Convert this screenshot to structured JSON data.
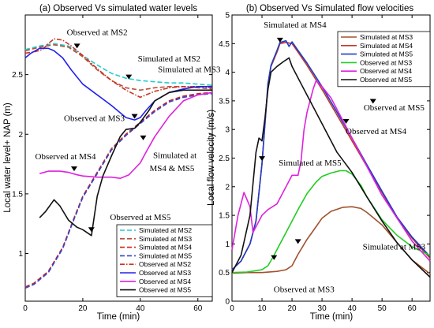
{
  "chart_data": [
    {
      "type": "line",
      "title": "(a) Observed Vs simulated water levels",
      "xlabel": "Time (min)",
      "ylabel": "Local water level+ NAP (m)",
      "xlim": [
        0,
        65
      ],
      "ylim": [
        0.6,
        3.0
      ],
      "xticks": [
        "0",
        "20",
        "40",
        "60"
      ],
      "yticks": [
        "1",
        "1.5",
        "2",
        "2.5"
      ],
      "ytick_values": [
        1,
        1.5,
        2,
        2.5
      ],
      "xtick_values": [
        0,
        20,
        40,
        60
      ],
      "grid": false,
      "legend_position": "bottom-right",
      "series": [
        {
          "name": "Simulated at MS2",
          "color": "#22cccc",
          "dash": "6,3",
          "x": [
            0,
            5,
            10,
            15,
            20,
            25,
            30,
            35,
            40,
            45,
            50,
            55,
            60,
            65
          ],
          "y": [
            2.71,
            2.74,
            2.76,
            2.74,
            2.66,
            2.58,
            2.51,
            2.47,
            2.45,
            2.44,
            2.43,
            2.43,
            2.42,
            2.41
          ]
        },
        {
          "name": "Simulated at MS3",
          "color": "#b8503a",
          "dash": "6,3",
          "x": [
            0,
            5,
            10,
            15,
            20,
            25,
            30,
            35,
            40,
            45,
            50,
            55,
            60,
            65
          ],
          "y": [
            2.7,
            2.73,
            2.75,
            2.73,
            2.65,
            2.54,
            2.45,
            2.39,
            2.37,
            2.39,
            2.4,
            2.4,
            2.39,
            2.38
          ]
        },
        {
          "name": "Simulated at MS4",
          "color": "#cc2222",
          "dash": "6,3",
          "x": [
            0,
            3,
            8,
            13,
            17,
            20,
            25,
            30,
            35,
            40,
            45,
            50,
            55,
            60,
            65
          ],
          "y": [
            0.72,
            0.75,
            0.85,
            1.05,
            1.3,
            1.48,
            1.68,
            1.88,
            2.0,
            2.1,
            2.2,
            2.28,
            2.32,
            2.34,
            2.35
          ]
        },
        {
          "name": "Simulated at MS5",
          "color": "#3344cc",
          "dash": "6,3",
          "x": [
            0,
            3,
            8,
            13,
            17,
            20,
            25,
            30,
            35,
            40,
            45,
            50,
            55,
            60,
            65
          ],
          "y": [
            0.71,
            0.74,
            0.84,
            1.04,
            1.29,
            1.47,
            1.67,
            1.87,
            1.99,
            2.09,
            2.19,
            2.27,
            2.31,
            2.33,
            2.34
          ]
        },
        {
          "name": "Observed at MS2",
          "color": "#cc3322",
          "dash": "6,2,1.5,2",
          "x": [
            0,
            3,
            6,
            8,
            10,
            13,
            16,
            20,
            25,
            30,
            35,
            40,
            45,
            50,
            55,
            60,
            65
          ],
          "y": [
            2.68,
            2.69,
            2.71,
            2.76,
            2.8,
            2.79,
            2.74,
            2.66,
            2.55,
            2.45,
            2.37,
            2.31,
            2.36,
            2.39,
            2.4,
            2.4,
            2.39
          ]
        },
        {
          "name": "Observed at MS3",
          "color": "#2222ee",
          "dash": "",
          "x": [
            0,
            2,
            5,
            8,
            10,
            13,
            16,
            20,
            25,
            30,
            35,
            38,
            40,
            42,
            45,
            50,
            55,
            60,
            65
          ],
          "y": [
            2.64,
            2.68,
            2.72,
            2.72,
            2.7,
            2.64,
            2.54,
            2.42,
            2.33,
            2.24,
            2.14,
            2.12,
            2.14,
            2.2,
            2.28,
            2.35,
            2.38,
            2.4,
            2.4
          ]
        },
        {
          "name": "Observed at MS4",
          "color": "#dd22dd",
          "dash": "",
          "x": [
            5,
            8,
            12,
            15,
            18,
            20,
            25,
            30,
            33,
            36,
            40,
            42,
            45,
            50,
            55,
            60,
            65
          ],
          "y": [
            1.67,
            1.69,
            1.69,
            1.68,
            1.66,
            1.65,
            1.64,
            1.64,
            1.63,
            1.66,
            1.76,
            1.85,
            1.98,
            2.15,
            2.28,
            2.33,
            2.35
          ]
        },
        {
          "name": "Observed at MS5",
          "color": "#111111",
          "dash": "",
          "x": [
            5,
            7,
            10,
            12,
            15,
            18,
            20,
            23,
            25,
            27,
            30,
            33,
            35,
            38,
            40,
            43,
            45,
            50,
            55,
            60,
            65
          ],
          "y": [
            1.3,
            1.35,
            1.45,
            1.4,
            1.28,
            1.22,
            1.2,
            1.15,
            1.48,
            1.65,
            1.82,
            1.98,
            2.04,
            2.05,
            2.1,
            2.2,
            2.28,
            2.35,
            2.37,
            2.37,
            2.37
          ]
        }
      ],
      "annotations": [
        {
          "text": "Observed at MS2",
          "at": [
            25,
            2.83
          ]
        },
        {
          "text": "Simulated at MS2",
          "at": [
            50,
            2.61
          ]
        },
        {
          "text": "Simulated at MS3",
          "at": [
            57,
            2.52
          ]
        },
        {
          "text": "Observed at MS3",
          "at": [
            24,
            2.11
          ]
        },
        {
          "text": "Observed at MS4",
          "at": [
            14,
            1.79
          ]
        },
        {
          "text": "Simulated at",
          "at": [
            52,
            1.8
          ]
        },
        {
          "text": "MS4 & MS5",
          "at": [
            51,
            1.69
          ]
        },
        {
          "text": "Observed at MS5",
          "at": [
            40,
            1.28
          ]
        }
      ]
    },
    {
      "type": "line",
      "title": "(b)  Observed Vs Simulated flow velocities",
      "xlabel": "Time (min)",
      "ylabel": "Local flow velocity (m/s)",
      "xlim": [
        0,
        66
      ],
      "ylim": [
        0,
        5
      ],
      "xticks": [
        "0",
        "10",
        "20",
        "30",
        "40",
        "50",
        "60"
      ],
      "xtick_values": [
        0,
        10,
        20,
        30,
        40,
        50,
        60
      ],
      "yticks": [
        "0",
        "0.5",
        "1",
        "1.5",
        "2",
        "2.5",
        "3",
        "3.5",
        "4",
        "4.5",
        "5"
      ],
      "ytick_values": [
        0,
        0.5,
        1,
        1.5,
        2,
        2.5,
        3,
        3.5,
        4,
        4.5,
        5
      ],
      "grid": false,
      "legend_position": "top-right",
      "series": [
        {
          "name": "Simulated at MS3",
          "color": "#a0522d",
          "dash": "",
          "x": [
            0,
            5,
            10,
            15,
            18,
            20,
            22,
            25,
            28,
            30,
            33,
            37,
            40,
            43,
            45,
            50,
            55,
            60,
            66
          ],
          "y": [
            0.49,
            0.5,
            0.5,
            0.52,
            0.55,
            0.62,
            0.82,
            1.08,
            1.3,
            1.45,
            1.57,
            1.64,
            1.65,
            1.62,
            1.55,
            1.33,
            1.02,
            0.72,
            0.48
          ]
        },
        {
          "name": "Simulated at MS4",
          "color": "#c0392b",
          "dash": "",
          "x": [
            0,
            3,
            6,
            8,
            10,
            11,
            12,
            13,
            15,
            16,
            18,
            20,
            22,
            25,
            30,
            35,
            40,
            45,
            50,
            55,
            60,
            66
          ],
          "y": [
            0.55,
            0.7,
            1.0,
            1.4,
            2.4,
            3.1,
            3.8,
            4.1,
            4.35,
            4.5,
            4.52,
            4.5,
            4.35,
            4.12,
            3.7,
            3.25,
            2.8,
            2.35,
            1.9,
            1.45,
            1.1,
            0.75
          ]
        },
        {
          "name": "Simulated at MS5",
          "color": "#1f3cc8",
          "dash": "",
          "x": [
            0,
            3,
            6,
            8,
            10,
            11,
            12,
            13,
            15,
            16,
            18,
            19,
            20,
            22,
            25,
            30,
            35,
            40,
            45,
            50,
            55,
            60,
            66
          ],
          "y": [
            0.55,
            0.7,
            1.0,
            1.4,
            2.4,
            3.1,
            3.8,
            4.12,
            4.38,
            4.52,
            4.55,
            4.45,
            4.53,
            4.38,
            4.16,
            3.75,
            3.3,
            2.85,
            2.38,
            1.92,
            1.47,
            1.12,
            0.78
          ]
        },
        {
          "name": "Observed at MS3",
          "color": "#22cc22",
          "dash": "",
          "x": [
            0,
            5,
            10,
            12,
            14,
            16,
            18,
            20,
            22,
            25,
            28,
            30,
            33,
            36,
            38,
            40,
            43,
            45,
            50,
            55,
            60,
            66
          ],
          "y": [
            0.5,
            0.51,
            0.55,
            0.62,
            0.8,
            1.0,
            1.2,
            1.4,
            1.6,
            1.88,
            2.08,
            2.18,
            2.24,
            2.28,
            2.28,
            2.22,
            2.02,
            1.82,
            1.42,
            1.15,
            0.95,
            0.8
          ]
        },
        {
          "name": "Observed at MS4",
          "color": "#dd22dd",
          "dash": "",
          "x": [
            0,
            2,
            4,
            6,
            7,
            8,
            10,
            12,
            15,
            18,
            20,
            22,
            23,
            24,
            25,
            27,
            28,
            30,
            33,
            36,
            40,
            45,
            50,
            55,
            60,
            66
          ],
          "y": [
            0.9,
            1.5,
            1.9,
            1.65,
            1.2,
            1.3,
            1.5,
            1.6,
            1.7,
            2.0,
            2.2,
            2.2,
            2.45,
            3.0,
            3.3,
            3.7,
            3.85,
            3.75,
            3.55,
            3.25,
            2.85,
            2.35,
            1.85,
            1.45,
            1.05,
            0.7
          ]
        },
        {
          "name": "Observed at MS5",
          "color": "#111111",
          "dash": "",
          "x": [
            0,
            3,
            6,
            8,
            9,
            10,
            11,
            12,
            13,
            15,
            17,
            19,
            20,
            22,
            25,
            30,
            35,
            40,
            45,
            50,
            55,
            60,
            66
          ],
          "y": [
            0.5,
            0.8,
            1.5,
            2.6,
            2.85,
            2.8,
            3.2,
            3.7,
            4.0,
            4.1,
            4.18,
            4.25,
            4.1,
            3.9,
            3.6,
            3.1,
            2.6,
            2.25,
            1.82,
            1.4,
            1.02,
            0.72,
            0.42
          ]
        }
      ],
      "annotations": [
        {
          "text": "Simulated at MS4",
          "at": [
            21,
            4.78
          ]
        },
        {
          "text": "Observed at MS5",
          "at": [
            54,
            3.33
          ]
        },
        {
          "text": "Observed at MS4",
          "at": [
            48,
            2.92
          ]
        },
        {
          "text": "Simulated at MS5",
          "at": [
            26,
            2.37
          ]
        },
        {
          "text": "Simulated at MS3",
          "at": [
            54,
            0.9
          ]
        },
        {
          "text": "Observed at MS3",
          "at": [
            24,
            0.16
          ]
        }
      ]
    }
  ]
}
